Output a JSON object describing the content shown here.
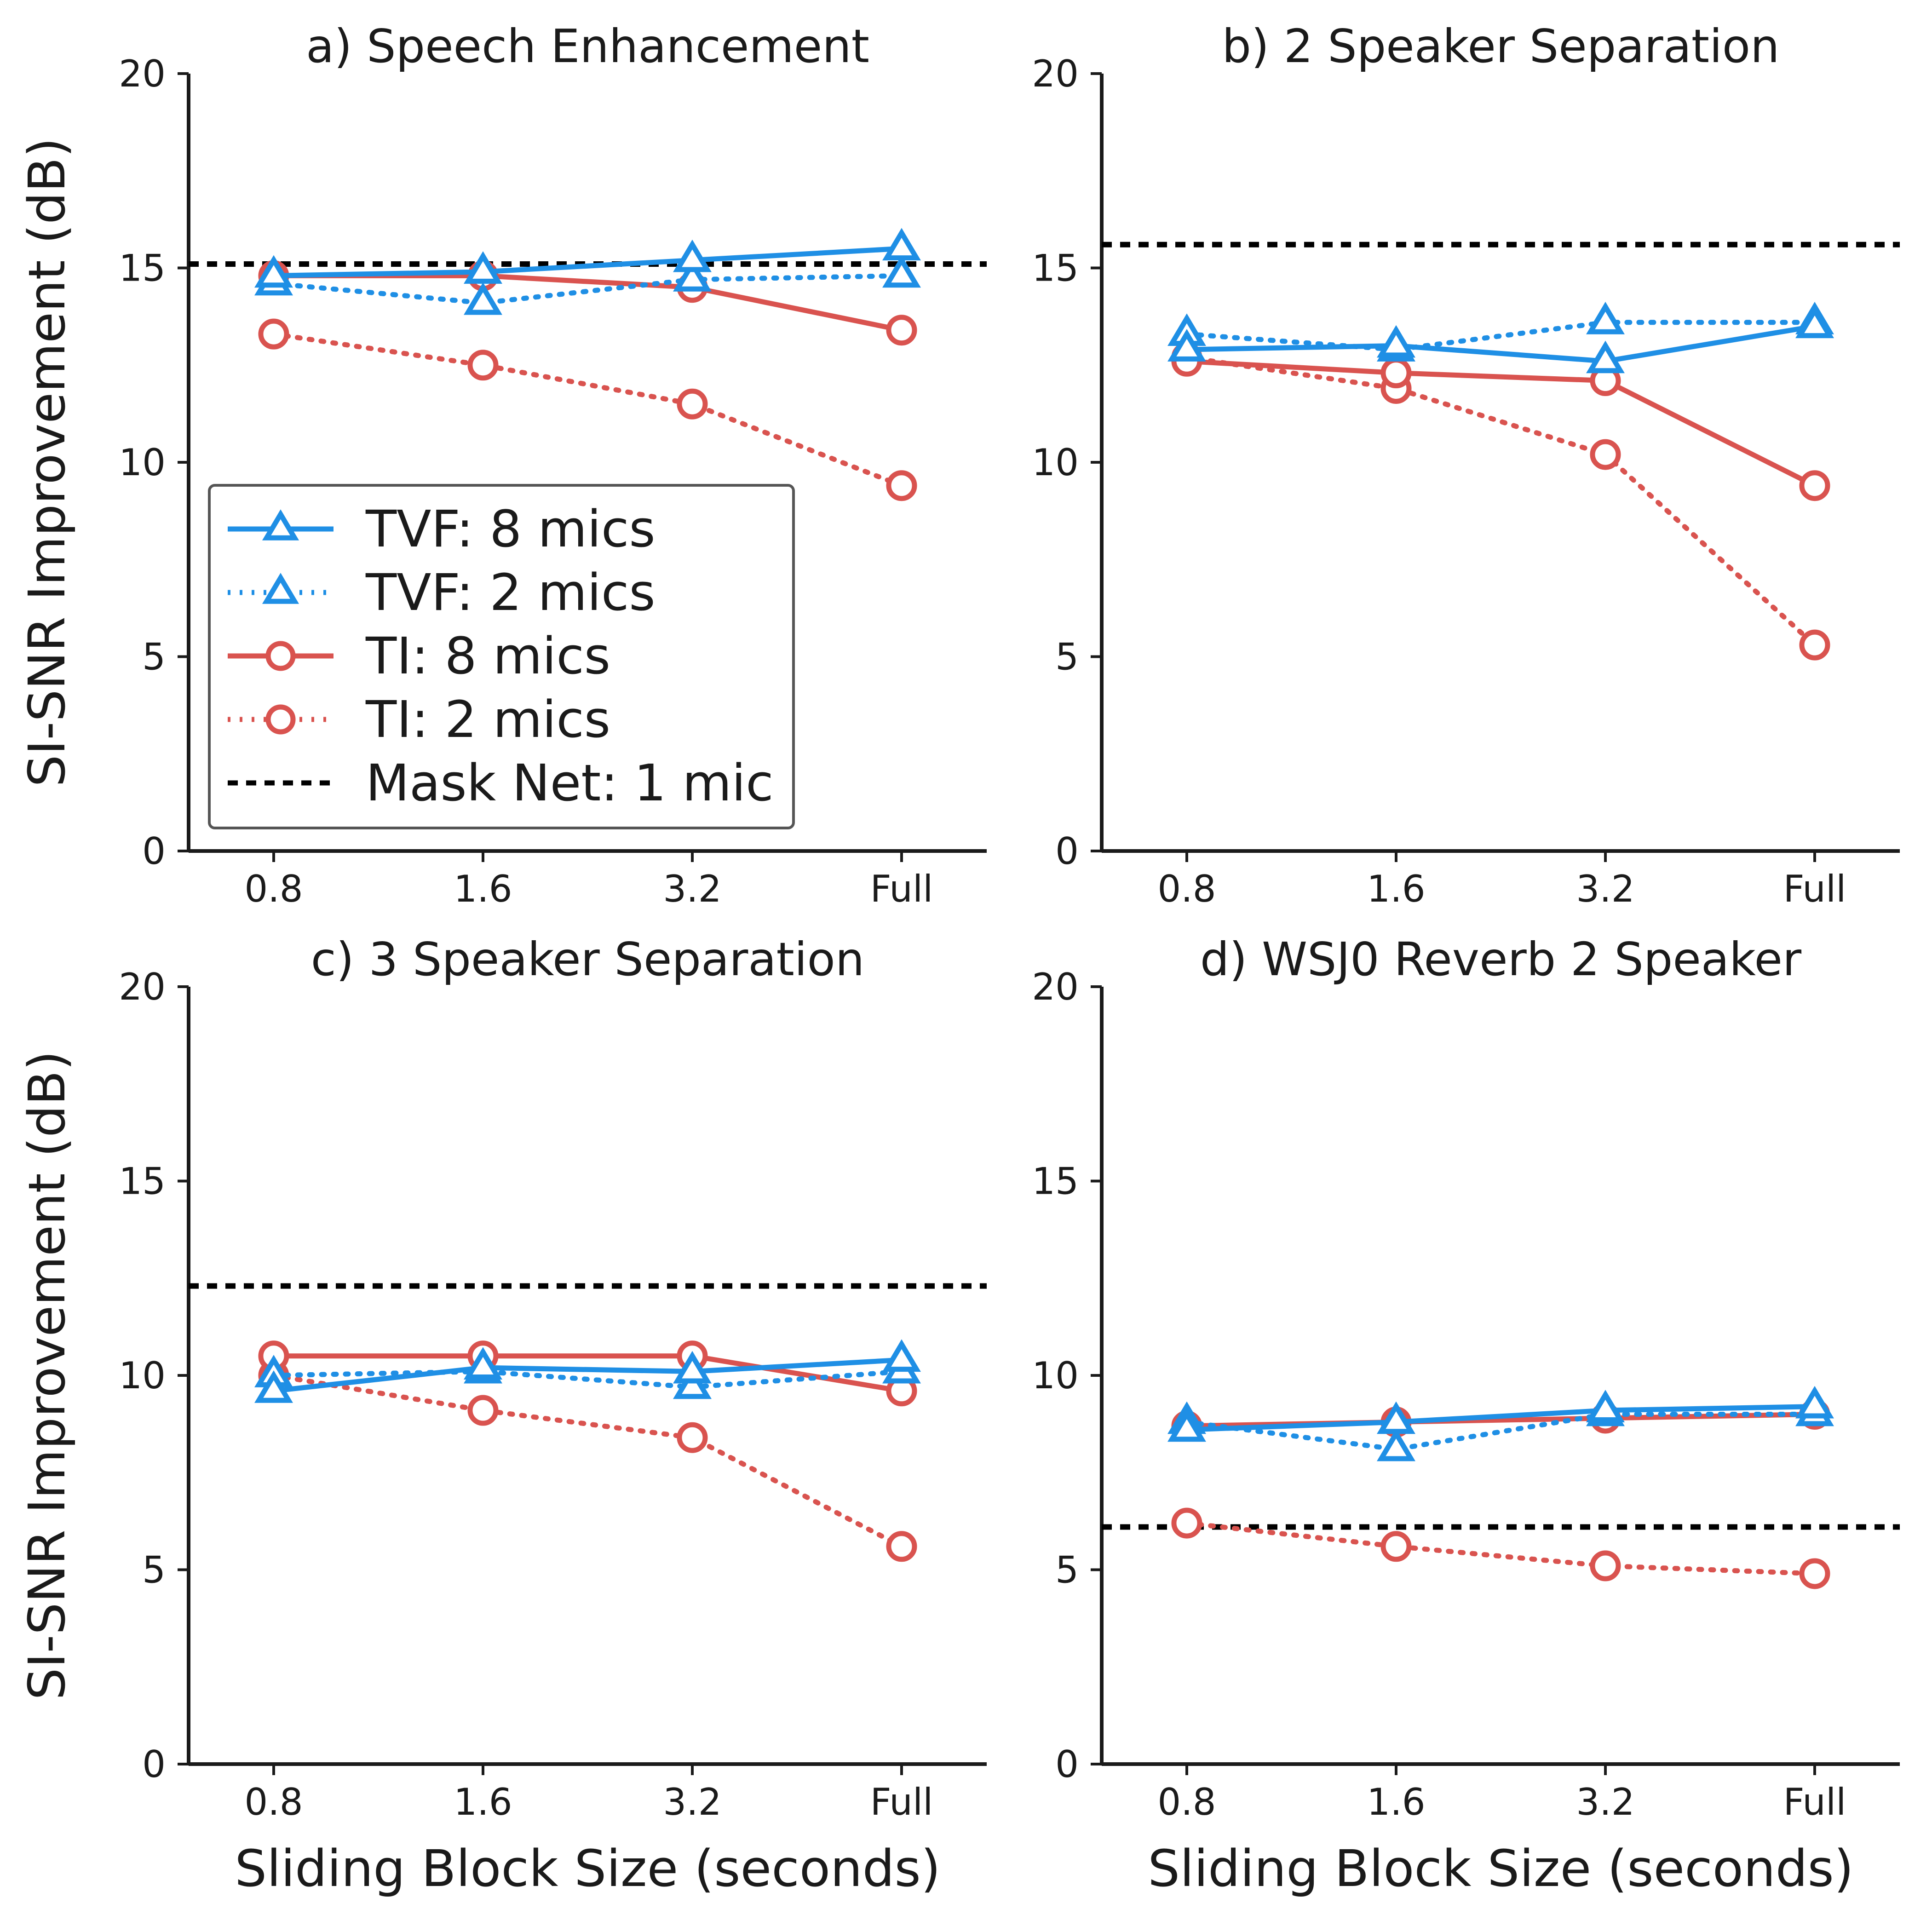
{
  "figure": {
    "ylabel": "SI-SNR Improvement (dB)",
    "xlabel": "Sliding Block Size (seconds)"
  },
  "legend": {
    "entries": [
      {
        "label": "TVF: 8 mics",
        "series": "tvf8"
      },
      {
        "label": "TVF: 2 mics",
        "series": "tvf2"
      },
      {
        "label": "TI: 8 mics",
        "series": "ti8"
      },
      {
        "label": "TI: 2 mics",
        "series": "ti2"
      },
      {
        "label": "Mask Net: 1 mic",
        "series": "mask"
      }
    ]
  },
  "styles": {
    "tvf8": {
      "color": "#1f8fe5",
      "dash": "solid",
      "marker": "triangle"
    },
    "tvf2": {
      "color": "#1f8fe5",
      "dash": "dotted",
      "marker": "triangle"
    },
    "ti8": {
      "color": "#d9534f",
      "dash": "solid",
      "marker": "circle"
    },
    "ti2": {
      "color": "#d9534f",
      "dash": "dotted",
      "marker": "circle"
    },
    "mask": {
      "color": "#000000",
      "dash": "dashed",
      "marker": "none"
    }
  },
  "chart_data": [
    {
      "type": "line",
      "title": "a) Speech Enhancement",
      "categories": [
        "0.8",
        "1.6",
        "3.2",
        "Full"
      ],
      "ylim": [
        0,
        20
      ],
      "yticks": [
        0,
        5,
        10,
        15,
        20
      ],
      "ylabel": "SI-SNR Improvement (dB)",
      "xlabel": "",
      "series": [
        {
          "key": "tvf8",
          "values": [
            14.8,
            14.9,
            15.2,
            15.5
          ]
        },
        {
          "key": "tvf2",
          "values": [
            14.6,
            14.1,
            14.7,
            14.8
          ]
        },
        {
          "key": "ti8",
          "values": [
            14.8,
            14.8,
            14.5,
            13.4
          ]
        },
        {
          "key": "ti2",
          "values": [
            13.3,
            12.5,
            11.5,
            9.4
          ]
        }
      ],
      "baseline": 15.1,
      "legend": true
    },
    {
      "type": "line",
      "title": "b) 2 Speaker Separation",
      "categories": [
        "0.8",
        "1.6",
        "3.2",
        "Full"
      ],
      "ylim": [
        0,
        20
      ],
      "yticks": [
        0,
        5,
        10,
        15,
        20
      ],
      "ylabel": "",
      "xlabel": "",
      "series": [
        {
          "key": "tvf8",
          "values": [
            12.9,
            13.0,
            12.6,
            13.5
          ]
        },
        {
          "key": "tvf2",
          "values": [
            13.3,
            12.9,
            13.6,
            13.6
          ]
        },
        {
          "key": "ti8",
          "values": [
            12.6,
            12.3,
            12.1,
            9.4
          ]
        },
        {
          "key": "ti2",
          "values": [
            12.7,
            11.9,
            10.2,
            5.3
          ]
        }
      ],
      "baseline": 15.6,
      "legend": false
    },
    {
      "type": "line",
      "title": "c) 3 Speaker Separation",
      "categories": [
        "0.8",
        "1.6",
        "3.2",
        "Full"
      ],
      "ylim": [
        0,
        20
      ],
      "yticks": [
        0,
        5,
        10,
        15,
        20
      ],
      "ylabel": "SI-SNR Improvement (dB)",
      "xlabel": "Sliding Block Size (seconds)",
      "series": [
        {
          "key": "tvf8",
          "values": [
            9.6,
            10.2,
            10.1,
            10.4
          ]
        },
        {
          "key": "tvf2",
          "values": [
            10.0,
            10.1,
            9.7,
            10.1
          ]
        },
        {
          "key": "ti8",
          "values": [
            10.5,
            10.5,
            10.5,
            9.6
          ]
        },
        {
          "key": "ti2",
          "values": [
            10.0,
            9.1,
            8.4,
            5.6
          ]
        }
      ],
      "baseline": 12.3,
      "legend": false
    },
    {
      "type": "line",
      "title": "d) WSJ0 Reverb 2 Speaker",
      "categories": [
        "0.8",
        "1.6",
        "3.2",
        "Full"
      ],
      "ylim": [
        0,
        20
      ],
      "yticks": [
        0,
        5,
        10,
        15,
        20
      ],
      "ylabel": "",
      "xlabel": "Sliding Block Size (seconds)",
      "series": [
        {
          "key": "tvf8",
          "values": [
            8.6,
            8.8,
            9.1,
            9.2
          ]
        },
        {
          "key": "tvf2",
          "values": [
            8.8,
            8.1,
            9.0,
            9.0
          ]
        },
        {
          "key": "ti8",
          "values": [
            8.7,
            8.8,
            8.9,
            9.0
          ]
        },
        {
          "key": "ti2",
          "values": [
            6.2,
            5.6,
            5.1,
            4.9
          ]
        }
      ],
      "baseline": 6.1,
      "legend": false
    }
  ]
}
